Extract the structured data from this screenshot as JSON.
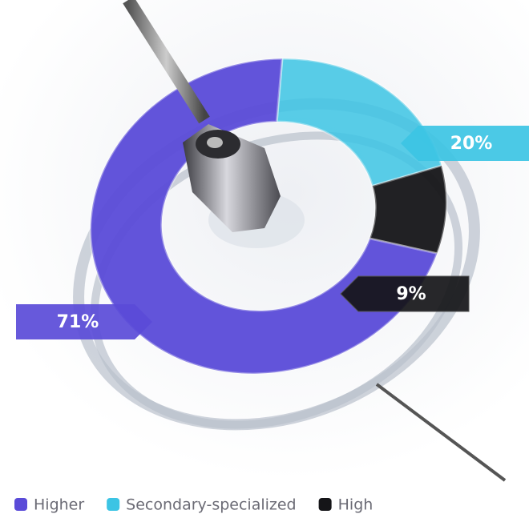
{
  "chart_data": {
    "type": "donut",
    "categories": [
      "Higher",
      "Secondary-specialized",
      "High"
    ],
    "values": [
      71,
      20,
      9
    ],
    "value_labels": [
      "71%",
      "20%",
      "9%"
    ],
    "colors": [
      "#5a4bd8",
      "#3cc4e4",
      "#151518"
    ],
    "legend": "bottom"
  }
}
